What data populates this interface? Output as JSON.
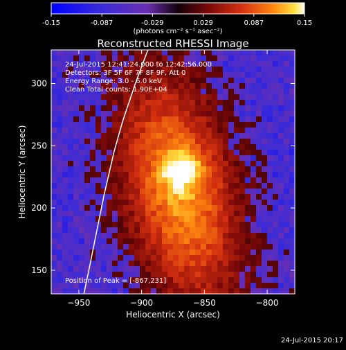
{
  "chart_data": {
    "type": "heatmap",
    "title": "Reconstructed RHESSI Image",
    "xlabel": "Heliocentric X (arcsec)",
    "ylabel": "Heliocentric Y (arcsec)",
    "xlim": [
      -972,
      -778
    ],
    "ylim": [
      131,
      327
    ],
    "xticks": [
      -950,
      -900,
      -850,
      -800
    ],
    "yticks": [
      150,
      200,
      250,
      300
    ],
    "colorbar": {
      "ticks": [
        "-0.15",
        "-0.087",
        "-0.029",
        "0.029",
        "0.087",
        "0.15"
      ],
      "range": [
        -0.15,
        0.15
      ],
      "unit_label": "(photons cm⁻² s⁻¹ asec⁻²)"
    },
    "annotations": [
      "24-Jul-2015 12:41:24.000 to 12:42:56.000",
      "Detectors: 3F 5F 6F 7F 8F 9F, Att 0",
      "Energy Range: 3.0 - 6.0 keV",
      "Clean     Total counts: 1.90E+04"
    ],
    "peak_label": "Position of Peak = [-867,231]",
    "peak_position": [
      -867,
      231
    ],
    "limb_curve": [
      [
        -895,
        327
      ],
      [
        -905,
        300
      ],
      [
        -915,
        270
      ],
      [
        -922,
        245
      ],
      [
        -930,
        210
      ],
      [
        -936,
        180
      ],
      [
        -942,
        150
      ],
      [
        -946,
        131
      ]
    ],
    "timestamp": "24-Jul-2015 20:17"
  },
  "colors": {
    "background": "#000000",
    "foreground": "#ffffff",
    "colormap": [
      "#0000ff",
      "#4b2ad0",
      "#7a3aa8",
      "#1a0010",
      "#8a1010",
      "#d83010",
      "#ff7a10",
      "#ffd030",
      "#ffffff"
    ]
  }
}
